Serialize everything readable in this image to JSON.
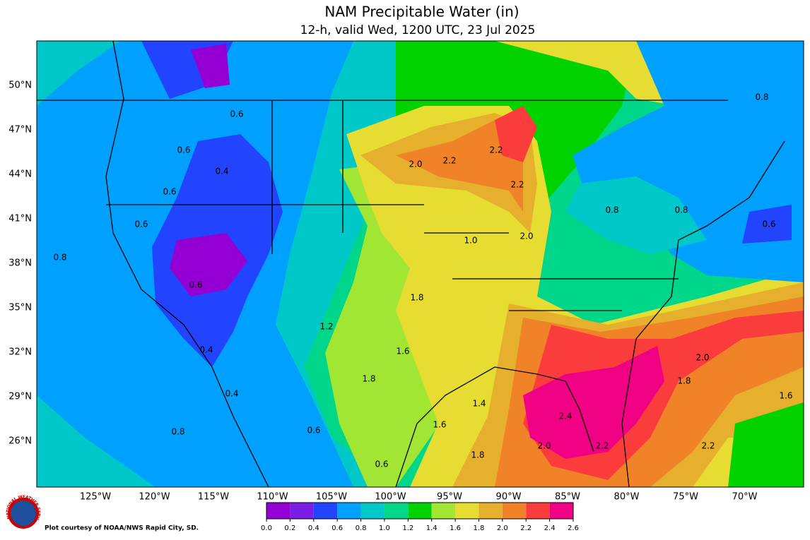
{
  "header": {
    "title": "NAM Precipitable Water (in)",
    "subtitle": "12-h, valid Wed, 1200 UTC, 23 Jul 2025"
  },
  "map": {
    "latitude_labels": [
      "50°N",
      "47°N",
      "44°N",
      "41°N",
      "38°N",
      "35°N",
      "32°N",
      "29°N",
      "26°N"
    ],
    "longitude_labels": [
      "125°W",
      "120°W",
      "115°W",
      "110°W",
      "105°W",
      "100°W",
      "95°W",
      "90°W",
      "85°W",
      "80°W",
      "75°W",
      "70°W"
    ],
    "contour_labels": [
      "2.2",
      "2.0",
      "2.2",
      "2.2",
      "2.0",
      "1.8",
      "1.2",
      "1.6",
      "1.8",
      "1.4",
      "1.6",
      "2.4",
      "2.0",
      "2.2",
      "1.8",
      "2.0",
      "1.8",
      "1.6",
      "2.2",
      "0.8",
      "0.8",
      "0.6",
      "0.8",
      "1.0",
      "0.4",
      "0.6",
      "0.6",
      "0.8",
      "0.6",
      "0.4",
      "0.8",
      "0.6",
      "0.6",
      "0.6",
      "0.4",
      "0.6"
    ]
  },
  "colorbar": {
    "colors": [
      "#9400d3",
      "#7a1ee6",
      "#2244ff",
      "#00a0ff",
      "#00c8c8",
      "#00d68a",
      "#00d200",
      "#a0e632",
      "#e6dc32",
      "#e6af2d",
      "#f08228",
      "#fa3c3c",
      "#f00082"
    ],
    "tick_labels": [
      "0.0",
      "0.2",
      "0.4",
      "0.6",
      "0.8",
      "1.0",
      "1.2",
      "1.4",
      "1.6",
      "1.8",
      "2.0",
      "2.2",
      "2.4",
      "2.6"
    ]
  },
  "footer": {
    "logo_text": "NATIONAL WEATHER SERVICE",
    "credit": "Plot courtesy of NOAA/NWS Rapid City, SD."
  }
}
